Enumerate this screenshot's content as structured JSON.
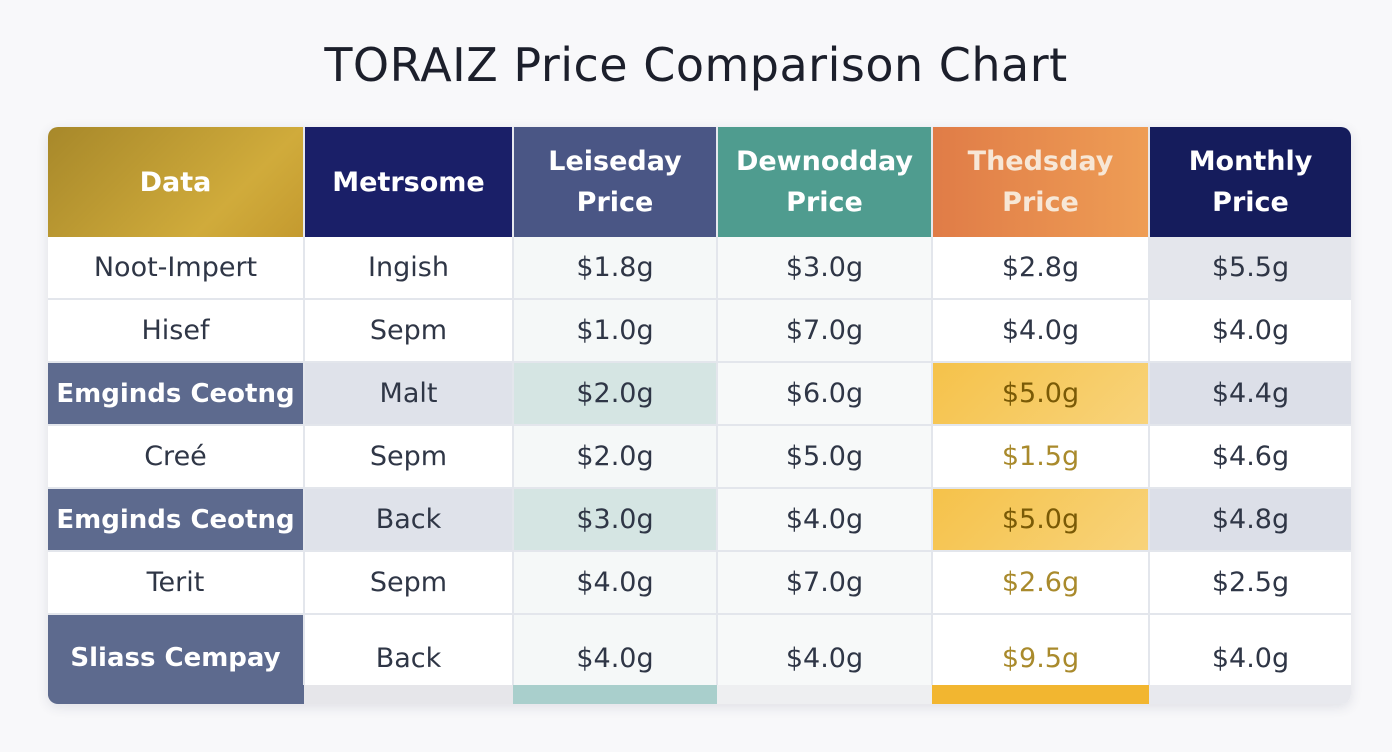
{
  "chart_data": {
    "type": "table",
    "title": "TORAIZ Price Comparison Chart",
    "columns": [
      "Data",
      "Metrsome",
      "Leiseday Price",
      "Dewnodday Price",
      "Thedsday Price",
      "Monthly Price"
    ],
    "rows": [
      {
        "label": "Noot-Impert",
        "type": "Ingish",
        "prices": [
          "$1.8g",
          "$3.0g",
          "$2.8g",
          "$5.5g"
        ]
      },
      {
        "label": "Hisef",
        "type": "Sepm",
        "prices": [
          "$1.0g",
          "$7.0g",
          "$4.0g",
          "$4.0g"
        ]
      },
      {
        "label": "Emginds Ceotng",
        "type": "Malt",
        "prices": [
          "$2.0g",
          "$6.0g",
          "$5.0g",
          "$4.4g"
        ]
      },
      {
        "label": "Creé",
        "type": "Sepm",
        "prices": [
          "$2.0g",
          "$5.0g",
          "$1.5g",
          "$4.6g"
        ]
      },
      {
        "label": "Emginds Ceotng",
        "type": "Back",
        "prices": [
          "$3.0g",
          "$4.0g",
          "$5.0g",
          "$4.8g"
        ]
      },
      {
        "label": "Terit",
        "type": "Sepm",
        "prices": [
          "$4.0g",
          "$7.0g",
          "$2.6g",
          "$2.5g"
        ]
      },
      {
        "label": "Sliass Cempay",
        "type": "Back",
        "prices": [
          "$4.0g",
          "$4.0g",
          "$9.5g",
          "$4.0g"
        ]
      }
    ]
  }
}
